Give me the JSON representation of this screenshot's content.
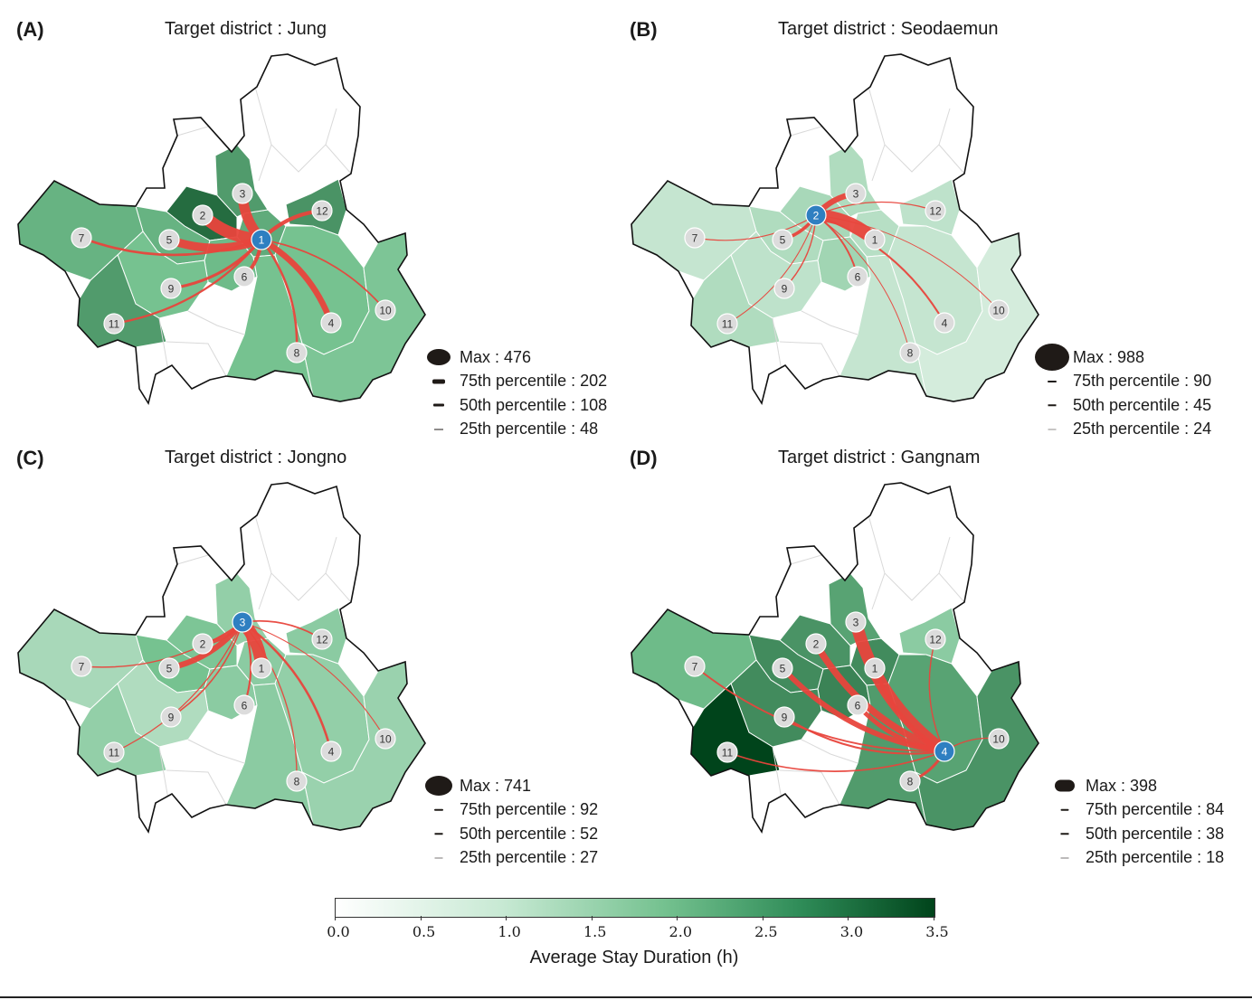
{
  "panels": [
    {
      "letter": "(A)",
      "title": "Target district : Jung",
      "target": "1",
      "legend": [
        {
          "label": "Max : 476"
        },
        {
          "label": "75th percentile : 202"
        },
        {
          "label": "50th percentile : 108"
        },
        {
          "label": "25th percentile : 48"
        }
      ],
      "district_stay": {
        "1": 2.2,
        "2": 3.0,
        "3": 2.4,
        "5": 2.1,
        "6": 2.0,
        "7": 2.1,
        "9": 1.9,
        "11": 2.4,
        "12": 2.5,
        "4": 1.9,
        "8": 1.9,
        "10": 1.8
      },
      "flows": [
        {
          "from": "2",
          "w": 476
        },
        {
          "from": "3",
          "w": 380
        },
        {
          "from": "5",
          "w": 300
        },
        {
          "from": "4",
          "w": 202
        },
        {
          "from": "12",
          "w": 120
        },
        {
          "from": "6",
          "w": 108
        },
        {
          "from": "9",
          "w": 80
        },
        {
          "from": "7",
          "w": 60
        },
        {
          "from": "8",
          "w": 60
        },
        {
          "from": "11",
          "w": 48
        },
        {
          "from": "10",
          "w": 30
        }
      ]
    },
    {
      "letter": "(B)",
      "title": "Target district : Seodaemun",
      "target": "2",
      "legend": [
        {
          "label": "Max : 988"
        },
        {
          "label": "75th percentile : 90"
        },
        {
          "label": "50th percentile : 45"
        },
        {
          "label": "25th percentile : 24"
        }
      ],
      "district_stay": {
        "1": 1.0,
        "2": 1.2,
        "3": 1.1,
        "5": 1.1,
        "6": 1.3,
        "7": 0.8,
        "9": 0.9,
        "11": 1.1,
        "12": 0.9,
        "4": 0.8,
        "8": 0.8,
        "10": 0.6
      },
      "flows": [
        {
          "from": "1",
          "w": 988
        },
        {
          "from": "3",
          "w": 400
        },
        {
          "from": "5",
          "w": 200
        },
        {
          "from": "4",
          "w": 90
        },
        {
          "from": "6",
          "w": 80
        },
        {
          "from": "9",
          "w": 45
        },
        {
          "from": "12",
          "w": 40
        },
        {
          "from": "7",
          "w": 30
        },
        {
          "from": "11",
          "w": 24
        },
        {
          "from": "8",
          "w": 20
        },
        {
          "from": "10",
          "w": 15
        }
      ]
    },
    {
      "letter": "(C)",
      "title": "Target district : Jongno",
      "target": "3",
      "legend": [
        {
          "label": "Max : 741"
        },
        {
          "label": "75th percentile : 92"
        },
        {
          "label": "50th percentile : 52"
        },
        {
          "label": "25th percentile : 27"
        }
      ],
      "district_stay": {
        "1": 1.6,
        "2": 1.8,
        "3": 1.5,
        "5": 1.9,
        "6": 1.6,
        "7": 1.2,
        "9": 1.1,
        "11": 1.5,
        "12": 1.6,
        "4": 1.5,
        "8": 1.6,
        "10": 1.4
      },
      "flows": [
        {
          "from": "1",
          "w": 741
        },
        {
          "from": "5",
          "w": 300
        },
        {
          "from": "2",
          "w": 200
        },
        {
          "from": "4",
          "w": 92
        },
        {
          "from": "6",
          "w": 70
        },
        {
          "from": "12",
          "w": 52
        },
        {
          "from": "9",
          "w": 45
        },
        {
          "from": "7",
          "w": 35
        },
        {
          "from": "8",
          "w": 30
        },
        {
          "from": "11",
          "w": 27
        },
        {
          "from": "10",
          "w": 20
        }
      ]
    },
    {
      "letter": "(D)",
      "title": "Target district : Gangnam",
      "target": "4",
      "legend": [
        {
          "label": "Max : 398"
        },
        {
          "label": "75th percentile : 84"
        },
        {
          "label": "50th percentile : 38"
        },
        {
          "label": "25th percentile : 18"
        }
      ],
      "district_stay": {
        "1": 2.6,
        "2": 2.5,
        "3": 2.3,
        "5": 2.6,
        "6": 2.7,
        "7": 2.0,
        "9": 2.6,
        "11": 3.5,
        "12": 1.6,
        "4": 2.3,
        "8": 2.4,
        "10": 2.5
      },
      "flows": [
        {
          "from": "3",
          "w": 398
        },
        {
          "from": "2",
          "w": 200
        },
        {
          "from": "5",
          "w": 150
        },
        {
          "from": "6",
          "w": 120
        },
        {
          "from": "1",
          "w": 84
        },
        {
          "from": "8",
          "w": 60
        },
        {
          "from": "9",
          "w": 38
        },
        {
          "from": "7",
          "w": 30
        },
        {
          "from": "11",
          "w": 25
        },
        {
          "from": "12",
          "w": 18
        },
        {
          "from": "10",
          "w": 15
        }
      ]
    }
  ],
  "colorbar": {
    "title": "Average Stay Duration (h)",
    "min": 0,
    "max": 3.5,
    "ticks": [
      "0.0",
      "0.5",
      "1.0",
      "1.5",
      "2.0",
      "2.5",
      "3.0",
      "3.5"
    ],
    "color_low": "#ffffff",
    "color_mid": "#74c18f",
    "color_high": "#00441b"
  },
  "colors": {
    "flow": "#e8453c",
    "target_node": "#2f7fc1",
    "node": "#dcdcdc",
    "legend_swatch": "#1f1a17"
  }
}
